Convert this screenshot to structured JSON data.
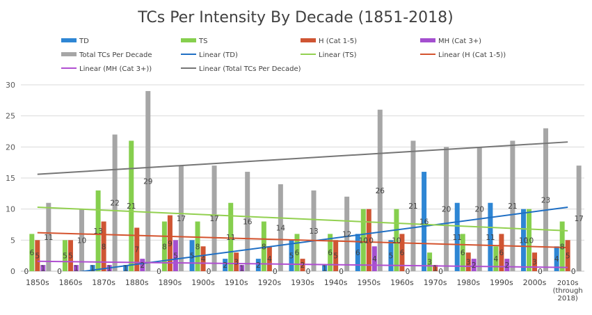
{
  "chart_data": {
    "type": "bar",
    "title": "TCs Per Intensity By Decade (1851-2018)",
    "categories": [
      "1850s",
      "1860s",
      "1870s",
      "1880s",
      "1890s",
      "1900s",
      "1910s",
      "1920s",
      "1930s",
      "1940s",
      "1950s",
      "1960s",
      "1970s",
      "1980s",
      "1990s",
      "2000s",
      "2010s (through 2018)"
    ],
    "category_lines": [
      [
        "1850s"
      ],
      [
        "1860s"
      ],
      [
        "1870s"
      ],
      [
        "1880s"
      ],
      [
        "1890s"
      ],
      [
        "1900s"
      ],
      [
        "1910s"
      ],
      [
        "1920s"
      ],
      [
        "1930s"
      ],
      [
        "1940s"
      ],
      [
        "1950s"
      ],
      [
        "1960s"
      ],
      [
        "1970s"
      ],
      [
        "1980s"
      ],
      [
        "1990s"
      ],
      [
        "2000s"
      ],
      [
        "2010s",
        "(through",
        "2018)"
      ]
    ],
    "series": [
      {
        "name": "TD",
        "color": "#2e86d4",
        "values": [
          0,
          0,
          1,
          1,
          0,
          5,
          2,
          2,
          5,
          1,
          6,
          5,
          16,
          11,
          11,
          10,
          4
        ]
      },
      {
        "name": "TS",
        "color": "#86cf4e",
        "values": [
          6,
          5,
          13,
          21,
          8,
          8,
          11,
          8,
          6,
          6,
          10,
          10,
          3,
          6,
          4,
          10,
          8
        ]
      },
      {
        "name": "H (Cat 1-5)",
        "color": "#cf5533",
        "values": [
          5,
          5,
          8,
          7,
          9,
          4,
          3,
          4,
          2,
          5,
          10,
          6,
          1,
          3,
          6,
          3,
          5
        ]
      },
      {
        "name": "MH (Cat 3+)",
        "color": "#a44fcf",
        "values": [
          1,
          1,
          1,
          2,
          5,
          0,
          1,
          0,
          0,
          0,
          4,
          0,
          0,
          2,
          2,
          0,
          0
        ]
      },
      {
        "name": "Total TCs Per Decade",
        "color": "#a6a6a6",
        "values": [
          11,
          10,
          22,
          29,
          17,
          17,
          16,
          14,
          13,
          12,
          26,
          21,
          20,
          20,
          21,
          23,
          17
        ]
      }
    ],
    "trendlines": [
      {
        "name": "Linear (TD)",
        "color": "#1f6fc4",
        "start": -1.0,
        "end": 10.3
      },
      {
        "name": "Linear (TS)",
        "color": "#92d050",
        "start": 10.3,
        "end": 6.5
      },
      {
        "name": "Linear (H (Cat 1-5))",
        "color": "#d4532e",
        "start": 6.2,
        "end": 3.8
      },
      {
        "name": "Linear (MH (Cat 3+))",
        "color": "#b04fd1",
        "start": 1.6,
        "end": 0.6
      },
      {
        "name": "Linear (Total TCs Per Decade)",
        "color": "#757575",
        "start": 15.6,
        "end": 20.8
      }
    ],
    "legend_position": "top",
    "y_ticks": [
      "0",
      "5",
      "10",
      "15",
      "20",
      "25",
      "30"
    ],
    "ylim": [
      0,
      30
    ],
    "grid": true,
    "xlabel": "",
    "ylabel": ""
  }
}
